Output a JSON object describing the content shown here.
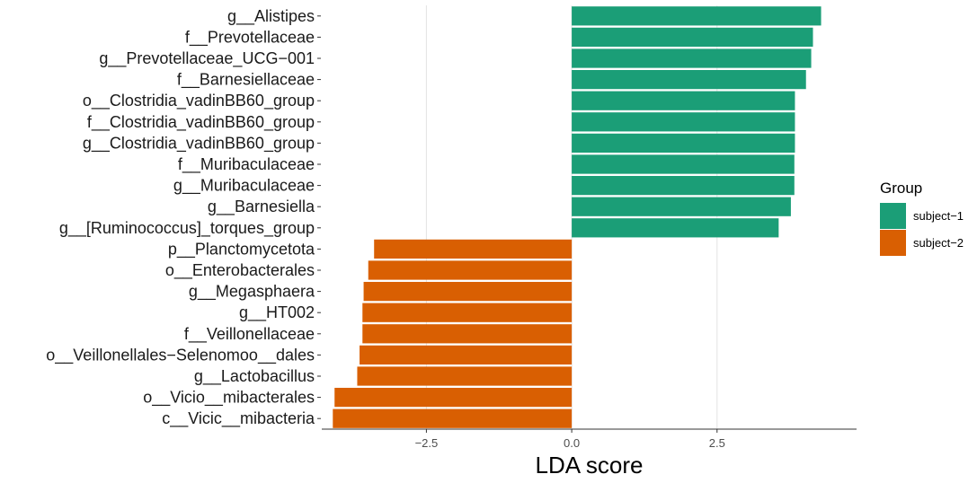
{
  "chart_data": {
    "type": "bar",
    "orientation": "horizontal",
    "xlabel": "LDA score",
    "xlim": [
      -4.3,
      4.9
    ],
    "xticks": [
      -2.5,
      0.0,
      2.5
    ],
    "xtick_labels": [
      "−2.5",
      "0.0",
      "2.5"
    ],
    "grid": true,
    "legend": {
      "title": "Group",
      "position": "right",
      "entries": [
        {
          "label": "subject−1",
          "color": "#1B9E77"
        },
        {
          "label": "subject−2",
          "color": "#D95F02"
        }
      ]
    },
    "categories": [
      "g__Alistipes",
      "f__Prevotellaceae",
      "g__Prevotellaceae_UCG−001",
      "f__Barnesiellaceae",
      "o__Clostridia_vadinBB60_group",
      "f__Clostridia_vadinBB60_group",
      "g__Clostridia_vadinBB60_group",
      "f__Muribaculaceae",
      "g__Muribaculaceae",
      "g__Barnesiella",
      "g__[Ruminococcus]_torques_group",
      "p__Planctomycetota",
      "o__Enterobacterales",
      "g__Megasphaera",
      "g__HT002",
      "f__Veillonellaceae",
      "o__Veillonellales−Selenomoo__dales",
      "g__Lactobacillus",
      "o__Vicio__mibacterales",
      "c__Vicic__mibacteria"
    ],
    "values": [
      4.29,
      4.15,
      4.12,
      4.03,
      3.84,
      3.84,
      3.84,
      3.83,
      3.83,
      3.77,
      3.56,
      -3.4,
      -3.5,
      -3.58,
      -3.6,
      -3.6,
      -3.65,
      -3.69,
      -4.08,
      -4.11
    ],
    "groups": [
      "subject−1",
      "subject−1",
      "subject−1",
      "subject−1",
      "subject−1",
      "subject−1",
      "subject−1",
      "subject−1",
      "subject−1",
      "subject−1",
      "subject−1",
      "subject−2",
      "subject−2",
      "subject−2",
      "subject−2",
      "subject−2",
      "subject−2",
      "subject−2",
      "subject−2",
      "subject−2"
    ]
  }
}
